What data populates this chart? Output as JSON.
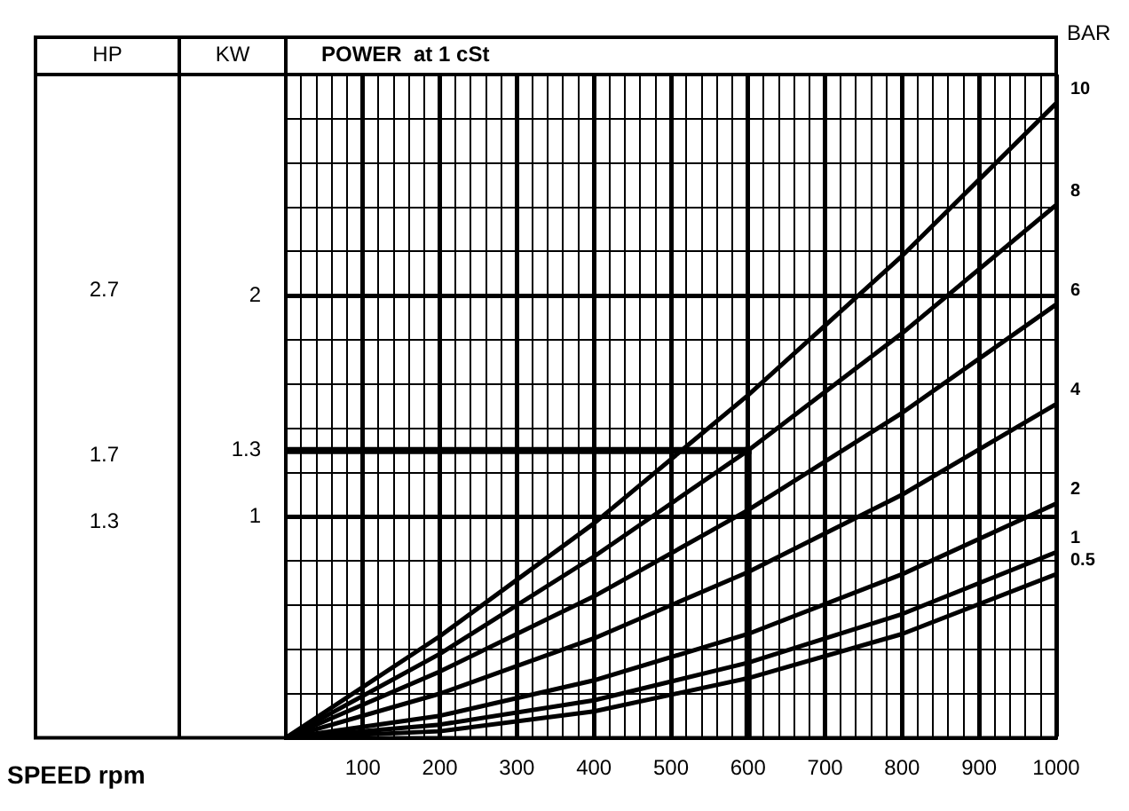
{
  "chart_data": {
    "type": "line",
    "title": "POWER  at 1 cSt",
    "xlabel": "SPEED rpm",
    "ylabel": "KW",
    "y2label": "HP",
    "legend_title": "BAR",
    "legend": false,
    "marker": "none",
    "grid": true,
    "x": [
      0,
      200,
      400,
      600,
      800,
      1000
    ],
    "series": [
      {
        "name": "10",
        "color": "#000000",
        "values": [
          0,
          0.46,
          0.97,
          1.55,
          2.18,
          2.87
        ]
      },
      {
        "name": "8",
        "color": "#000000",
        "values": [
          0,
          0.38,
          0.82,
          1.3,
          1.83,
          2.41
        ]
      },
      {
        "name": "6",
        "color": "#000000",
        "values": [
          0,
          0.3,
          0.64,
          1.03,
          1.47,
          1.96
        ]
      },
      {
        "name": "4",
        "color": "#000000",
        "values": [
          0,
          0.2,
          0.45,
          0.75,
          1.1,
          1.51
        ]
      },
      {
        "name": "2",
        "color": "#000000",
        "values": [
          0,
          0.1,
          0.26,
          0.47,
          0.74,
          1.06
        ]
      },
      {
        "name": "1",
        "color": "#000000",
        "values": [
          0,
          0.06,
          0.17,
          0.34,
          0.56,
          0.84
        ]
      },
      {
        "name": "0.5",
        "color": "#000000",
        "values": [
          0,
          0.03,
          0.12,
          0.27,
          0.47,
          0.74
        ]
      }
    ],
    "xlim": [
      0,
      1000
    ],
    "xticks": [
      {
        "value": 20,
        "label": null
      },
      {
        "value": 40,
        "label": null
      },
      {
        "value": 60,
        "label": null
      },
      {
        "value": 80,
        "label": null
      },
      100,
      {
        "value": 120,
        "label": null
      },
      {
        "value": 140,
        "label": null
      },
      {
        "value": 160,
        "label": null
      },
      {
        "value": 180,
        "label": null
      },
      200,
      {
        "value": 220,
        "label": null
      },
      {
        "value": 240,
        "label": null
      },
      {
        "value": 260,
        "label": null
      },
      {
        "value": 280,
        "label": null
      },
      300,
      {
        "value": 320,
        "label": null
      },
      {
        "value": 340,
        "label": null
      },
      {
        "value": 360,
        "label": null
      },
      {
        "value": 380,
        "label": null
      },
      400,
      {
        "value": 420,
        "label": null
      },
      {
        "value": 440,
        "label": null
      },
      {
        "value": 460,
        "label": null
      },
      {
        "value": 480,
        "label": null
      },
      500,
      {
        "value": 520,
        "label": null
      },
      {
        "value": 540,
        "label": null
      },
      {
        "value": 560,
        "label": null
      },
      {
        "value": 580,
        "label": null
      },
      600,
      {
        "value": 620,
        "label": null
      },
      {
        "value": 640,
        "label": null
      },
      {
        "value": 660,
        "label": null
      },
      {
        "value": 680,
        "label": null
      },
      700,
      {
        "value": 720,
        "label": null
      },
      {
        "value": 740,
        "label": null
      },
      {
        "value": 760,
        "label": null
      },
      {
        "value": 780,
        "label": null
      },
      800,
      {
        "value": 820,
        "label": null
      },
      {
        "value": 840,
        "label": null
      },
      {
        "value": 860,
        "label": null
      },
      {
        "value": 880,
        "label": null
      },
      900,
      {
        "value": 920,
        "label": null
      },
      {
        "value": 940,
        "label": null
      },
      {
        "value": 960,
        "label": null
      },
      {
        "value": 980,
        "label": null
      },
      1000
    ],
    "ylim": [
      0,
      3
    ],
    "yticks": [
      {
        "value": 0.2,
        "label": null
      },
      {
        "value": 0.4,
        "label": null
      },
      {
        "value": 0.6,
        "label": null
      },
      {
        "value": 0.8,
        "label": null
      },
      1,
      {
        "value": 1.2,
        "label": null
      },
      1.3,
      {
        "value": 1.4,
        "label": null
      },
      {
        "value": 1.6,
        "label": null
      },
      {
        "value": 1.8,
        "label": null
      },
      2,
      {
        "value": 2.2,
        "label": null
      },
      {
        "value": 2.4,
        "label": null
      },
      {
        "value": 2.6,
        "label": null
      },
      {
        "value": 2.8,
        "label": null
      }
    ],
    "y2lim": [
      0,
      4
    ],
    "y2ticks": [
      1.3,
      1.7,
      2.7
    ],
    "ref_lines": [
      {
        "axis": "y",
        "value": 1.3,
        "color": "#000000"
      },
      {
        "axis": "x",
        "value": 600,
        "color": "#000000"
      }
    ]
  }
}
